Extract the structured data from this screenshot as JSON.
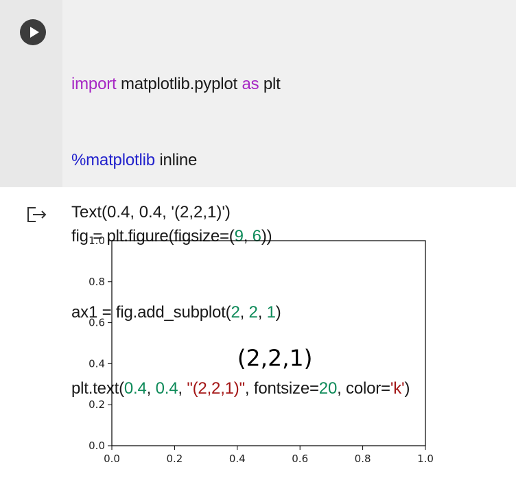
{
  "run_button": {
    "icon": "play-icon"
  },
  "code": {
    "line1": {
      "kw1": "import",
      "t1": " matplotlib.pyplot ",
      "kw2": "as",
      "t2": " plt"
    },
    "line2": {
      "magic": "%matplotlib",
      "t1": " inline"
    },
    "line3": {
      "t1": "fig = plt.figure(figsize=(",
      "n1": "9",
      "t2": ", ",
      "n2": "6",
      "t3": "))"
    },
    "line4": {
      "t1": "ax1 = fig.add_subplot(",
      "n1": "2",
      "t2": ", ",
      "n2": "2",
      "t3": ", ",
      "n3": "1",
      "t4": ")"
    },
    "line5": {
      "t1": "plt.text(",
      "n1": "0.4",
      "t2": ", ",
      "n2": "0.4",
      "t3": ", ",
      "s1": "\"(2,2,1)\"",
      "t4": ", fontsize=",
      "n3": "20",
      "t5": ", color=",
      "s2": "'k'",
      "t6": ")"
    }
  },
  "output": {
    "icon": "output-redirect-icon",
    "text": "Text(0.4, 0.4, '(2,2,1)')"
  },
  "chart_data": {
    "type": "scatter",
    "title": "",
    "xlabel": "",
    "ylabel": "",
    "xlim": [
      0.0,
      1.0
    ],
    "ylim": [
      0.0,
      1.0
    ],
    "x_ticks": [
      "0.0",
      "0.2",
      "0.4",
      "0.6",
      "0.8",
      "1.0"
    ],
    "y_ticks": [
      "0.0",
      "0.2",
      "0.4",
      "0.6",
      "0.8",
      "1.0"
    ],
    "grid": false,
    "series": [],
    "annotations": [
      {
        "x": 0.4,
        "y": 0.4,
        "text": "(2,2,1)",
        "color": "#000000"
      }
    ]
  }
}
